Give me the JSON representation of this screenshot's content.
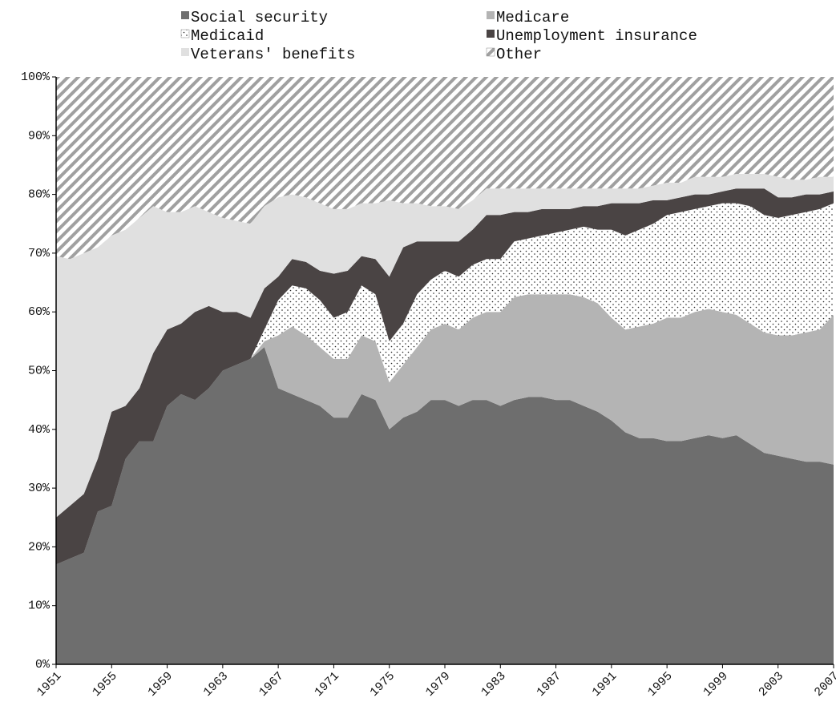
{
  "chart_data": {
    "type": "stacked_area_percent",
    "x": [
      1951,
      1952,
      1953,
      1954,
      1955,
      1956,
      1957,
      1958,
      1959,
      1960,
      1961,
      1962,
      1963,
      1964,
      1965,
      1966,
      1967,
      1968,
      1969,
      1970,
      1971,
      1972,
      1973,
      1974,
      1975,
      1976,
      1977,
      1978,
      1979,
      1980,
      1981,
      1982,
      1983,
      1984,
      1985,
      1986,
      1987,
      1988,
      1989,
      1990,
      1991,
      1992,
      1993,
      1994,
      1995,
      1996,
      1997,
      1998,
      1999,
      2000,
      2001,
      2002,
      2003,
      2004,
      2005,
      2006,
      2007
    ],
    "xlim": [
      1951,
      2007
    ],
    "xticks": [
      1951,
      1955,
      1959,
      1963,
      1967,
      1971,
      1975,
      1979,
      1983,
      1987,
      1991,
      1995,
      1999,
      2003,
      2007
    ],
    "ylim": [
      0,
      100
    ],
    "yticks": [
      {
        "value": 0,
        "label": "0%"
      },
      {
        "value": 10,
        "label": "10%"
      },
      {
        "value": 20,
        "label": "20%"
      },
      {
        "value": 30,
        "label": "30%"
      },
      {
        "value": 40,
        "label": "40%"
      },
      {
        "value": 50,
        "label": "50%"
      },
      {
        "value": 60,
        "label": "60%"
      },
      {
        "value": 70,
        "label": "70%"
      },
      {
        "value": 80,
        "label": "80%"
      },
      {
        "value": 90,
        "label": "90%"
      },
      {
        "value": 100,
        "label": "100%"
      }
    ],
    "legend_position": "top",
    "series": [
      {
        "name": "Social security",
        "color": "#6e6e6e",
        "pattern": "solid",
        "values": [
          17,
          18,
          19,
          26,
          27,
          35,
          38,
          38,
          44,
          46,
          45,
          47,
          50,
          51,
          52,
          54,
          47,
          46,
          45,
          44,
          42,
          42,
          46,
          45,
          40,
          42,
          43,
          45,
          45,
          44,
          45,
          45,
          44,
          45,
          45.5,
          45.5,
          45,
          45,
          44,
          43,
          41.5,
          39.5,
          38.5,
          38.5,
          38,
          38,
          38.5,
          39,
          38.5,
          39,
          37.5,
          36,
          35.5,
          35,
          34.5,
          34.5,
          34
        ]
      },
      {
        "name": "Medicare",
        "color": "#b4b4b4",
        "pattern": "solid",
        "values": [
          0,
          0,
          0,
          0,
          0,
          0,
          0,
          0,
          0,
          0,
          0,
          0,
          0,
          0,
          0,
          1,
          9,
          11.5,
          11,
          10,
          10,
          10,
          10,
          10,
          8,
          9,
          11,
          12,
          13,
          13,
          14,
          15,
          16,
          17.5,
          17.5,
          17.5,
          18,
          18,
          18.5,
          18.5,
          17.5,
          17.5,
          19,
          19.5,
          21,
          21,
          21.5,
          21.5,
          21.5,
          20.5,
          20.5,
          20.5,
          20.5,
          21,
          22,
          22.5,
          25.5
        ]
      },
      {
        "name": "Medicaid",
        "color": "#222222",
        "pattern": "dots",
        "values": [
          0,
          0,
          0,
          0,
          0,
          0,
          0,
          0,
          0,
          0,
          0,
          0,
          0,
          0,
          0,
          2,
          6,
          7,
          8,
          8,
          7,
          8,
          8.5,
          8,
          7,
          7,
          9,
          8.5,
          9,
          9,
          9,
          9,
          9,
          9.5,
          9.5,
          10,
          10.5,
          11,
          12,
          12.5,
          15,
          16,
          16.5,
          17,
          17.5,
          18,
          17.5,
          17.5,
          18.5,
          19,
          20,
          20,
          20,
          20.5,
          20.5,
          20.5,
          19
        ]
      },
      {
        "name": "Unemployment insurance",
        "color": "#4a4444",
        "pattern": "solid",
        "values": [
          8,
          9,
          10,
          9,
          16,
          9,
          9,
          15,
          13,
          12,
          15,
          14,
          10,
          9,
          7,
          7,
          4,
          4.5,
          4.5,
          5,
          7.5,
          7,
          5,
          6,
          11,
          13,
          9,
          6.5,
          5,
          6,
          6,
          7.5,
          7.5,
          5,
          4.5,
          4.5,
          4,
          3.5,
          3.5,
          4,
          4.5,
          5.5,
          4.5,
          4,
          2.5,
          2.5,
          2.5,
          2,
          2,
          2.5,
          3,
          4.5,
          3.5,
          3,
          3,
          2.5,
          2
        ]
      },
      {
        "name": "Veterans' benefits",
        "color": "#e0e0e0",
        "pattern": "solid",
        "values": [
          44.5,
          42,
          41,
          36,
          30,
          30,
          29,
          25,
          20,
          19,
          18,
          16,
          16,
          15.5,
          16,
          14,
          13.5,
          11,
          11,
          11.5,
          11,
          10.5,
          9,
          9.5,
          13,
          7.5,
          6.5,
          6,
          6,
          5.5,
          5,
          4.5,
          4.5,
          4,
          4,
          3.5,
          3.5,
          3.5,
          3,
          3,
          2.5,
          2.5,
          2.5,
          2.5,
          3,
          2.5,
          3,
          3,
          2.5,
          2.5,
          2.5,
          2.5,
          3.5,
          3,
          2.5,
          3,
          2.5
        ]
      },
      {
        "name": "Other",
        "color": "#a0a0a0",
        "pattern": "hatch",
        "values": [
          30.5,
          31,
          30,
          29,
          27,
          26,
          24,
          22,
          23,
          23,
          22,
          23,
          24,
          24.5,
          25,
          22,
          20.5,
          20,
          20.5,
          21.5,
          22.5,
          22.5,
          21.5,
          21.5,
          21,
          21.5,
          21.5,
          22,
          22,
          22.5,
          21,
          19,
          19,
          19,
          19,
          19,
          19,
          19,
          19,
          19,
          19,
          19,
          19,
          18.5,
          18,
          18,
          17,
          17,
          17,
          16.5,
          16.5,
          16.5,
          17,
          17.5,
          17.5,
          17,
          17
        ]
      }
    ]
  }
}
